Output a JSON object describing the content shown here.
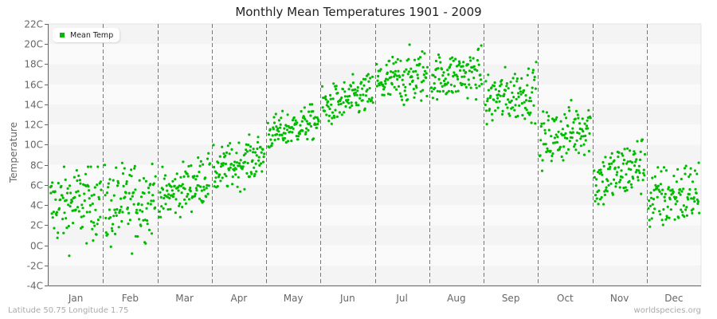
{
  "title": "Monthly Mean Temperatures 1901 - 2009",
  "footer": {
    "location": "Latitude 50.75 Longitude 1.75",
    "source": "worldspecies.org"
  },
  "legend": {
    "label": "Mean Temp",
    "color": "#00bb00"
  },
  "colors": {
    "point": "#00bb00",
    "band_dark": "#f4f4f4",
    "band_light": "#fafafa",
    "axis": "#666666",
    "separator": "#777777"
  },
  "chart_data": {
    "type": "scatter",
    "title": "Monthly Mean Temperatures 1901 - 2009",
    "xlabel": "",
    "ylabel": "Temperature",
    "ylim": [
      -4,
      22
    ],
    "y_ticks": [
      "-4C",
      "-2C",
      "0C",
      "2C",
      "4C",
      "6C",
      "8C",
      "10C",
      "12C",
      "14C",
      "16C",
      "18C",
      "20C",
      "22C"
    ],
    "categories": [
      "Jan",
      "Feb",
      "Mar",
      "Apr",
      "May",
      "Jun",
      "Jul",
      "Aug",
      "Sep",
      "Oct",
      "Nov",
      "Dec"
    ],
    "legend": [
      "Mean Temp"
    ],
    "legend_position": "top-left",
    "grid": "alternating horizontal bands every 2C, dashed vertical month separators",
    "points_per_month": 109,
    "series": [
      {
        "name": "Mean Temp",
        "monthly_summary": [
          {
            "month": "Jan",
            "mean": 4.0,
            "min": -2.3,
            "max": 7.8,
            "start_mean": 3.8,
            "end_mean": 4.6
          },
          {
            "month": "Feb",
            "mean": 4.0,
            "min": -2.0,
            "max": 8.4,
            "start_mean": 3.6,
            "end_mean": 4.8
          },
          {
            "month": "Mar",
            "mean": 5.6,
            "min": 2.8,
            "max": 9.2,
            "start_mean": 4.6,
            "end_mean": 6.8
          },
          {
            "month": "Apr",
            "mean": 8.0,
            "min": 5.2,
            "max": 11.0,
            "start_mean": 7.2,
            "end_mean": 9.0
          },
          {
            "month": "May",
            "mean": 11.6,
            "min": 9.6,
            "max": 14.0,
            "start_mean": 11.0,
            "end_mean": 12.4
          },
          {
            "month": "Jun",
            "mean": 14.3,
            "min": 11.8,
            "max": 17.0,
            "start_mean": 13.6,
            "end_mean": 15.2
          },
          {
            "month": "Jul",
            "mean": 16.4,
            "min": 13.8,
            "max": 20.6,
            "start_mean": 16.0,
            "end_mean": 17.0
          },
          {
            "month": "Aug",
            "mean": 16.8,
            "min": 14.5,
            "max": 20.5,
            "start_mean": 16.6,
            "end_mean": 17.2
          },
          {
            "month": "Sep",
            "mean": 14.8,
            "min": 11.5,
            "max": 18.3,
            "start_mean": 14.4,
            "end_mean": 15.4
          },
          {
            "month": "Oct",
            "mean": 11.0,
            "min": 7.4,
            "max": 14.6,
            "start_mean": 10.2,
            "end_mean": 12.0
          },
          {
            "month": "Nov",
            "mean": 7.2,
            "min": 3.8,
            "max": 11.4,
            "start_mean": 6.2,
            "end_mean": 8.2
          },
          {
            "month": "Dec",
            "mean": 4.8,
            "min": -0.2,
            "max": 8.2,
            "start_mean": 4.4,
            "end_mean": 5.4
          }
        ]
      }
    ]
  }
}
